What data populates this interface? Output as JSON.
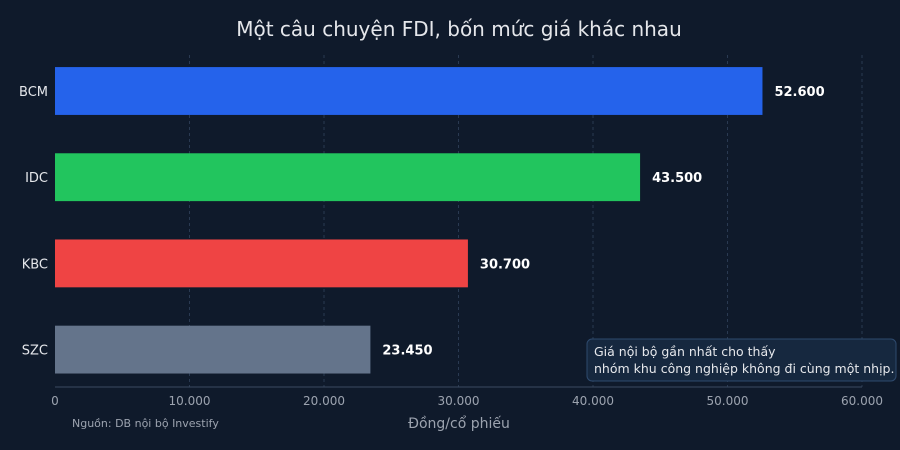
{
  "chart_data": {
    "type": "bar",
    "orientation": "horizontal",
    "title": "Một câu chuyện FDI, bốn mức giá khác nhau",
    "xlabel": "Đồng/cổ phiếu",
    "ylabel": "",
    "xlim": [
      0,
      60000
    ],
    "xticks": [
      0,
      10000,
      20000,
      30000,
      40000,
      50000,
      60000
    ],
    "xtick_labels": [
      "0",
      "10.000",
      "20.000",
      "30.000",
      "40.000",
      "50.000",
      "60.000"
    ],
    "grid": "vertical dashed",
    "bars": [
      {
        "category": "BCM",
        "value": 52600,
        "label": "52.600",
        "color": "#2563eb"
      },
      {
        "category": "IDC",
        "value": 43500,
        "label": "43.500",
        "color": "#22c55e"
      },
      {
        "category": "KBC",
        "value": 30700,
        "label": "30.700",
        "color": "#ef4444"
      },
      {
        "category": "SZC",
        "value": 23450,
        "label": "23.450",
        "color": "#64748b"
      }
    ],
    "annotation": {
      "line1": "Giá nội bộ gần nhất cho thấy",
      "line2": "nhóm khu công nghiệp không đi cùng một nhịp."
    },
    "source": "Nguồn: DB nội bộ Investify"
  },
  "colors": {
    "background": "#0f1a2b",
    "text": "#e5e7eb",
    "muted": "#9ca3af",
    "grid": "#2a3a52",
    "annotation_bg": "#16283f",
    "annotation_border": "#2e4a6e"
  }
}
